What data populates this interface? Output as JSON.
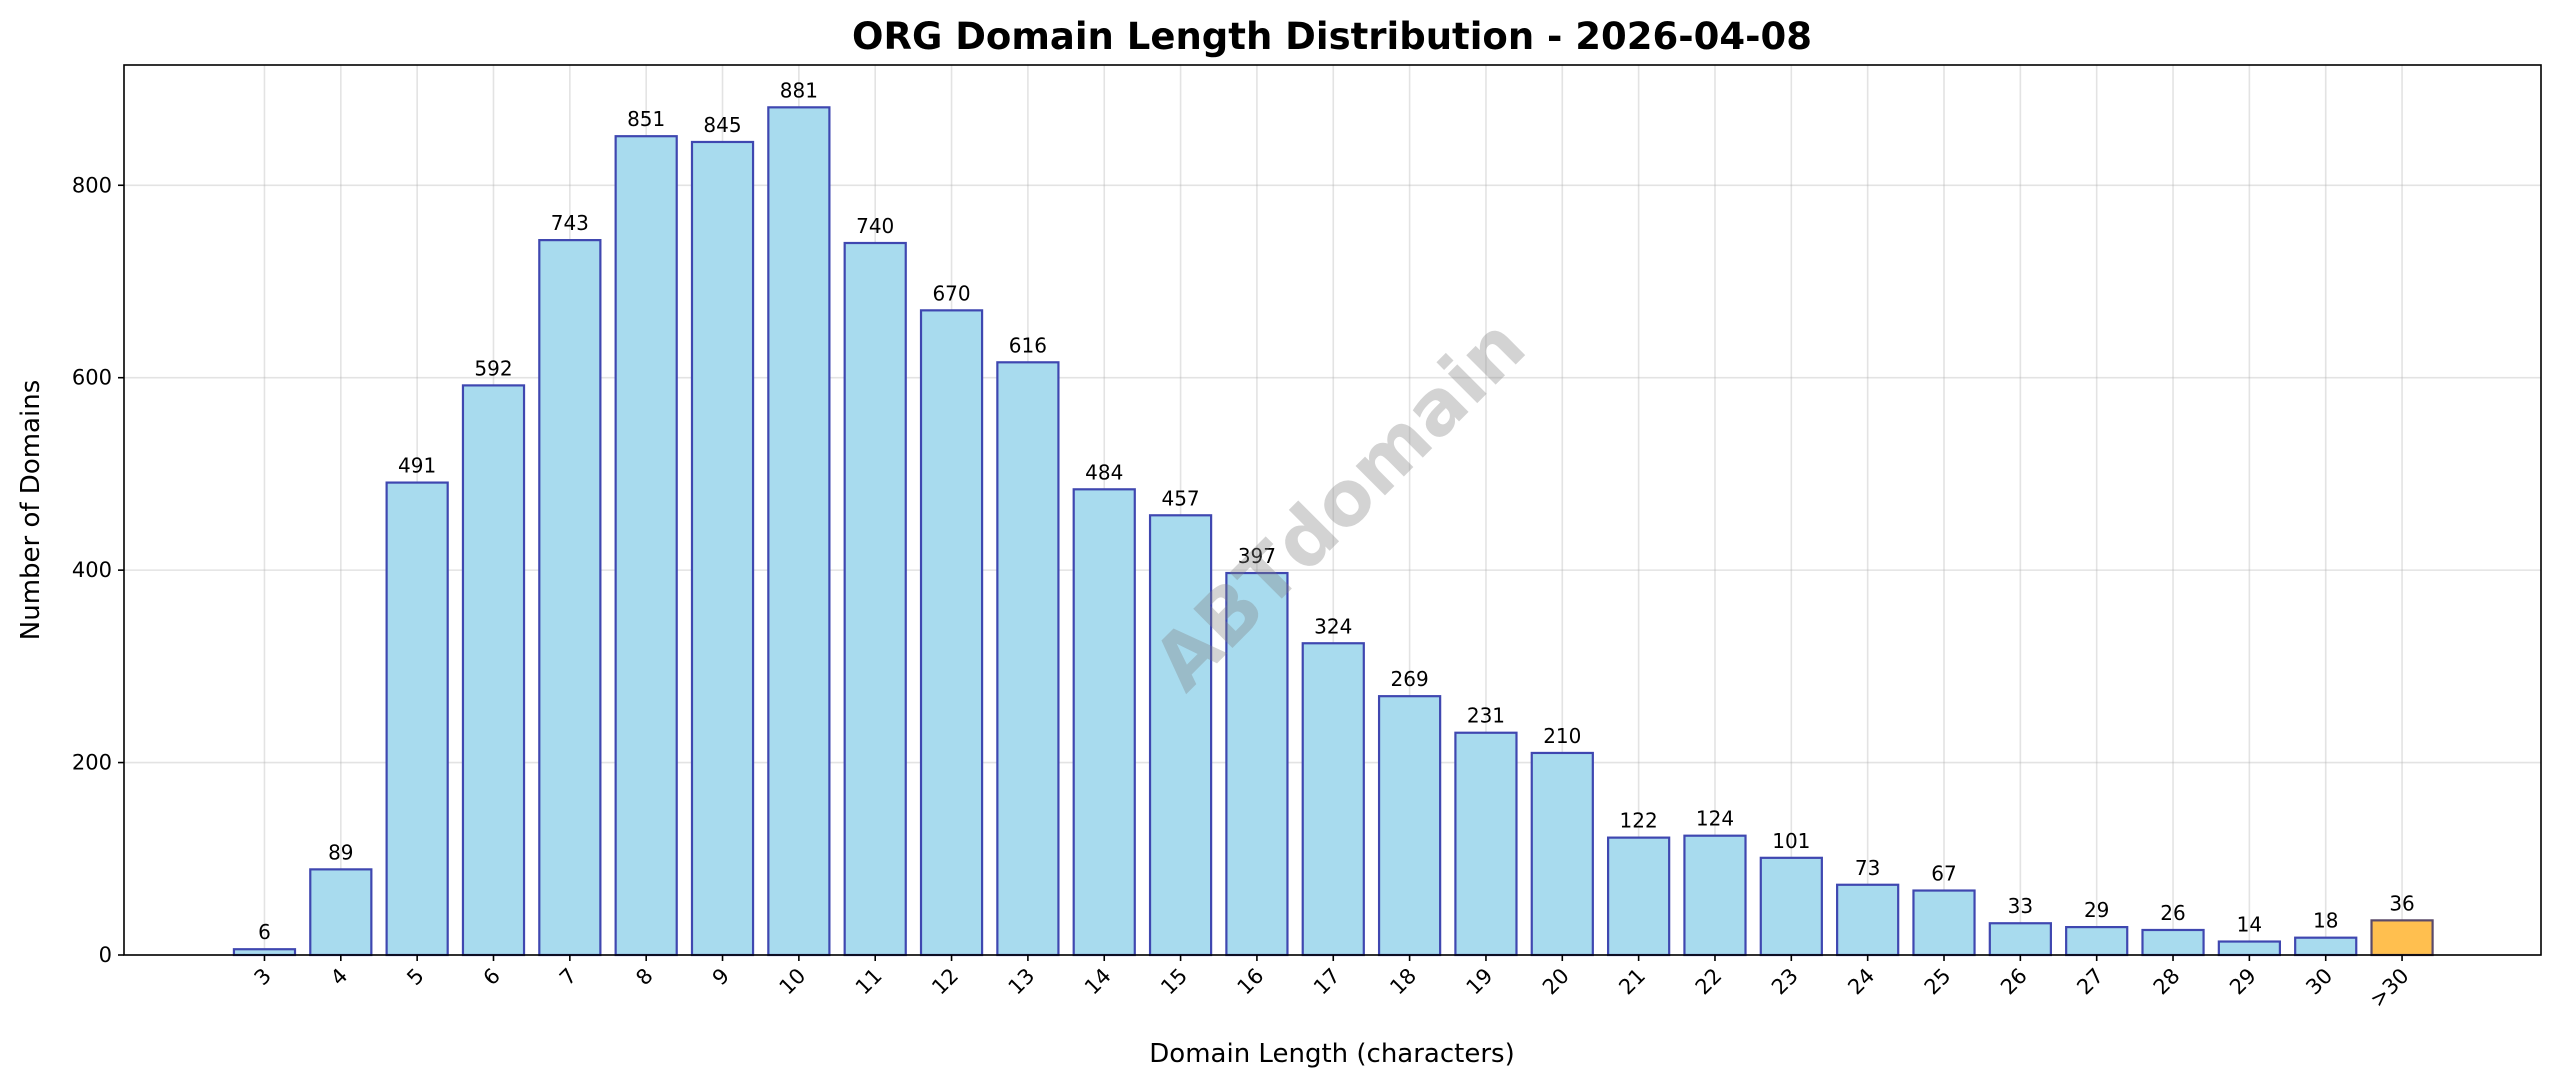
{
  "chart_data": {
    "type": "bar",
    "title": "ORG Domain Length Distribution - 2026-04-08",
    "xlabel": "Domain Length (characters)",
    "ylabel": "Number of Domains",
    "categories": [
      "3",
      "4",
      "5",
      "6",
      "7",
      "8",
      "9",
      "10",
      "11",
      "12",
      "13",
      "14",
      "15",
      "16",
      "17",
      "18",
      "19",
      "20",
      "21",
      "22",
      "23",
      "24",
      "25",
      "26",
      "27",
      "28",
      "29",
      "30",
      ">30"
    ],
    "values": [
      6,
      89,
      491,
      592,
      743,
      851,
      845,
      881,
      740,
      670,
      616,
      484,
      457,
      397,
      324,
      269,
      231,
      210,
      122,
      124,
      101,
      73,
      67,
      33,
      29,
      26,
      14,
      18,
      36
    ],
    "ylim": [
      0,
      925
    ],
    "yticks": [
      0,
      200,
      400,
      600,
      800
    ],
    "grid": true,
    "colors": {
      "bar": "#a8dbee",
      "bar_edge": "#3f47b0",
      "highlight_bar": "#ffbf4f",
      "highlight_edge": "#5a4a6a"
    },
    "highlight_category": ">30",
    "watermark": "ABTdomain"
  }
}
